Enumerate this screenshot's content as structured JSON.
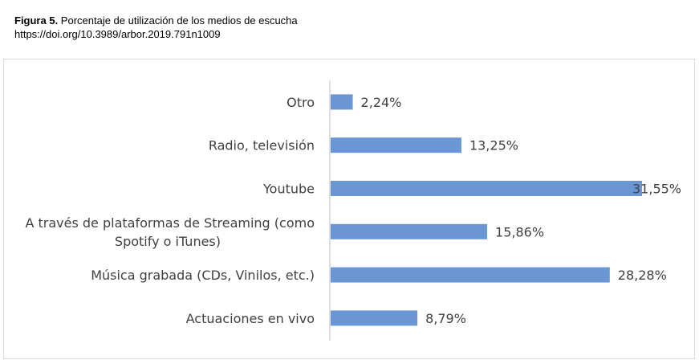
{
  "caption": {
    "figure_label": "Figura 5.",
    "title": " Porcentaje de utilización de los medios de escucha",
    "doi": "https://doi.org/10.3989/arbor.2019.791n1009"
  },
  "colors": {
    "bar": "#6a97d4",
    "axis": "#bfbfbf",
    "text": "#404040"
  },
  "chart_data": {
    "type": "bar",
    "orientation": "horizontal",
    "categories": [
      "Otro",
      "Radio, televisión",
      "Youtube",
      "A través de plataformas de Streaming (como Spotify o iTunes)",
      "Música grabada (CDs, Vinilos, etc.)",
      "Actuaciones en vivo"
    ],
    "category_lines": [
      [
        "Otro"
      ],
      [
        "Radio, televisión"
      ],
      [
        "Youtube"
      ],
      [
        "A través de plataformas de Streaming (como",
        "Spotify o iTunes)"
      ],
      [
        "Música grabada (CDs, Vinilos, etc.)"
      ],
      [
        "Actuaciones en vivo"
      ]
    ],
    "values": [
      2.24,
      13.25,
      31.55,
      15.86,
      28.28,
      8.79
    ],
    "data_labels": [
      "2,24%",
      "13,25%",
      "31,55%",
      "15,86%",
      "28,28%",
      "8,79%"
    ],
    "unit": "%",
    "xlim": [
      0,
      31.55
    ],
    "grid": false,
    "legend": "none"
  }
}
